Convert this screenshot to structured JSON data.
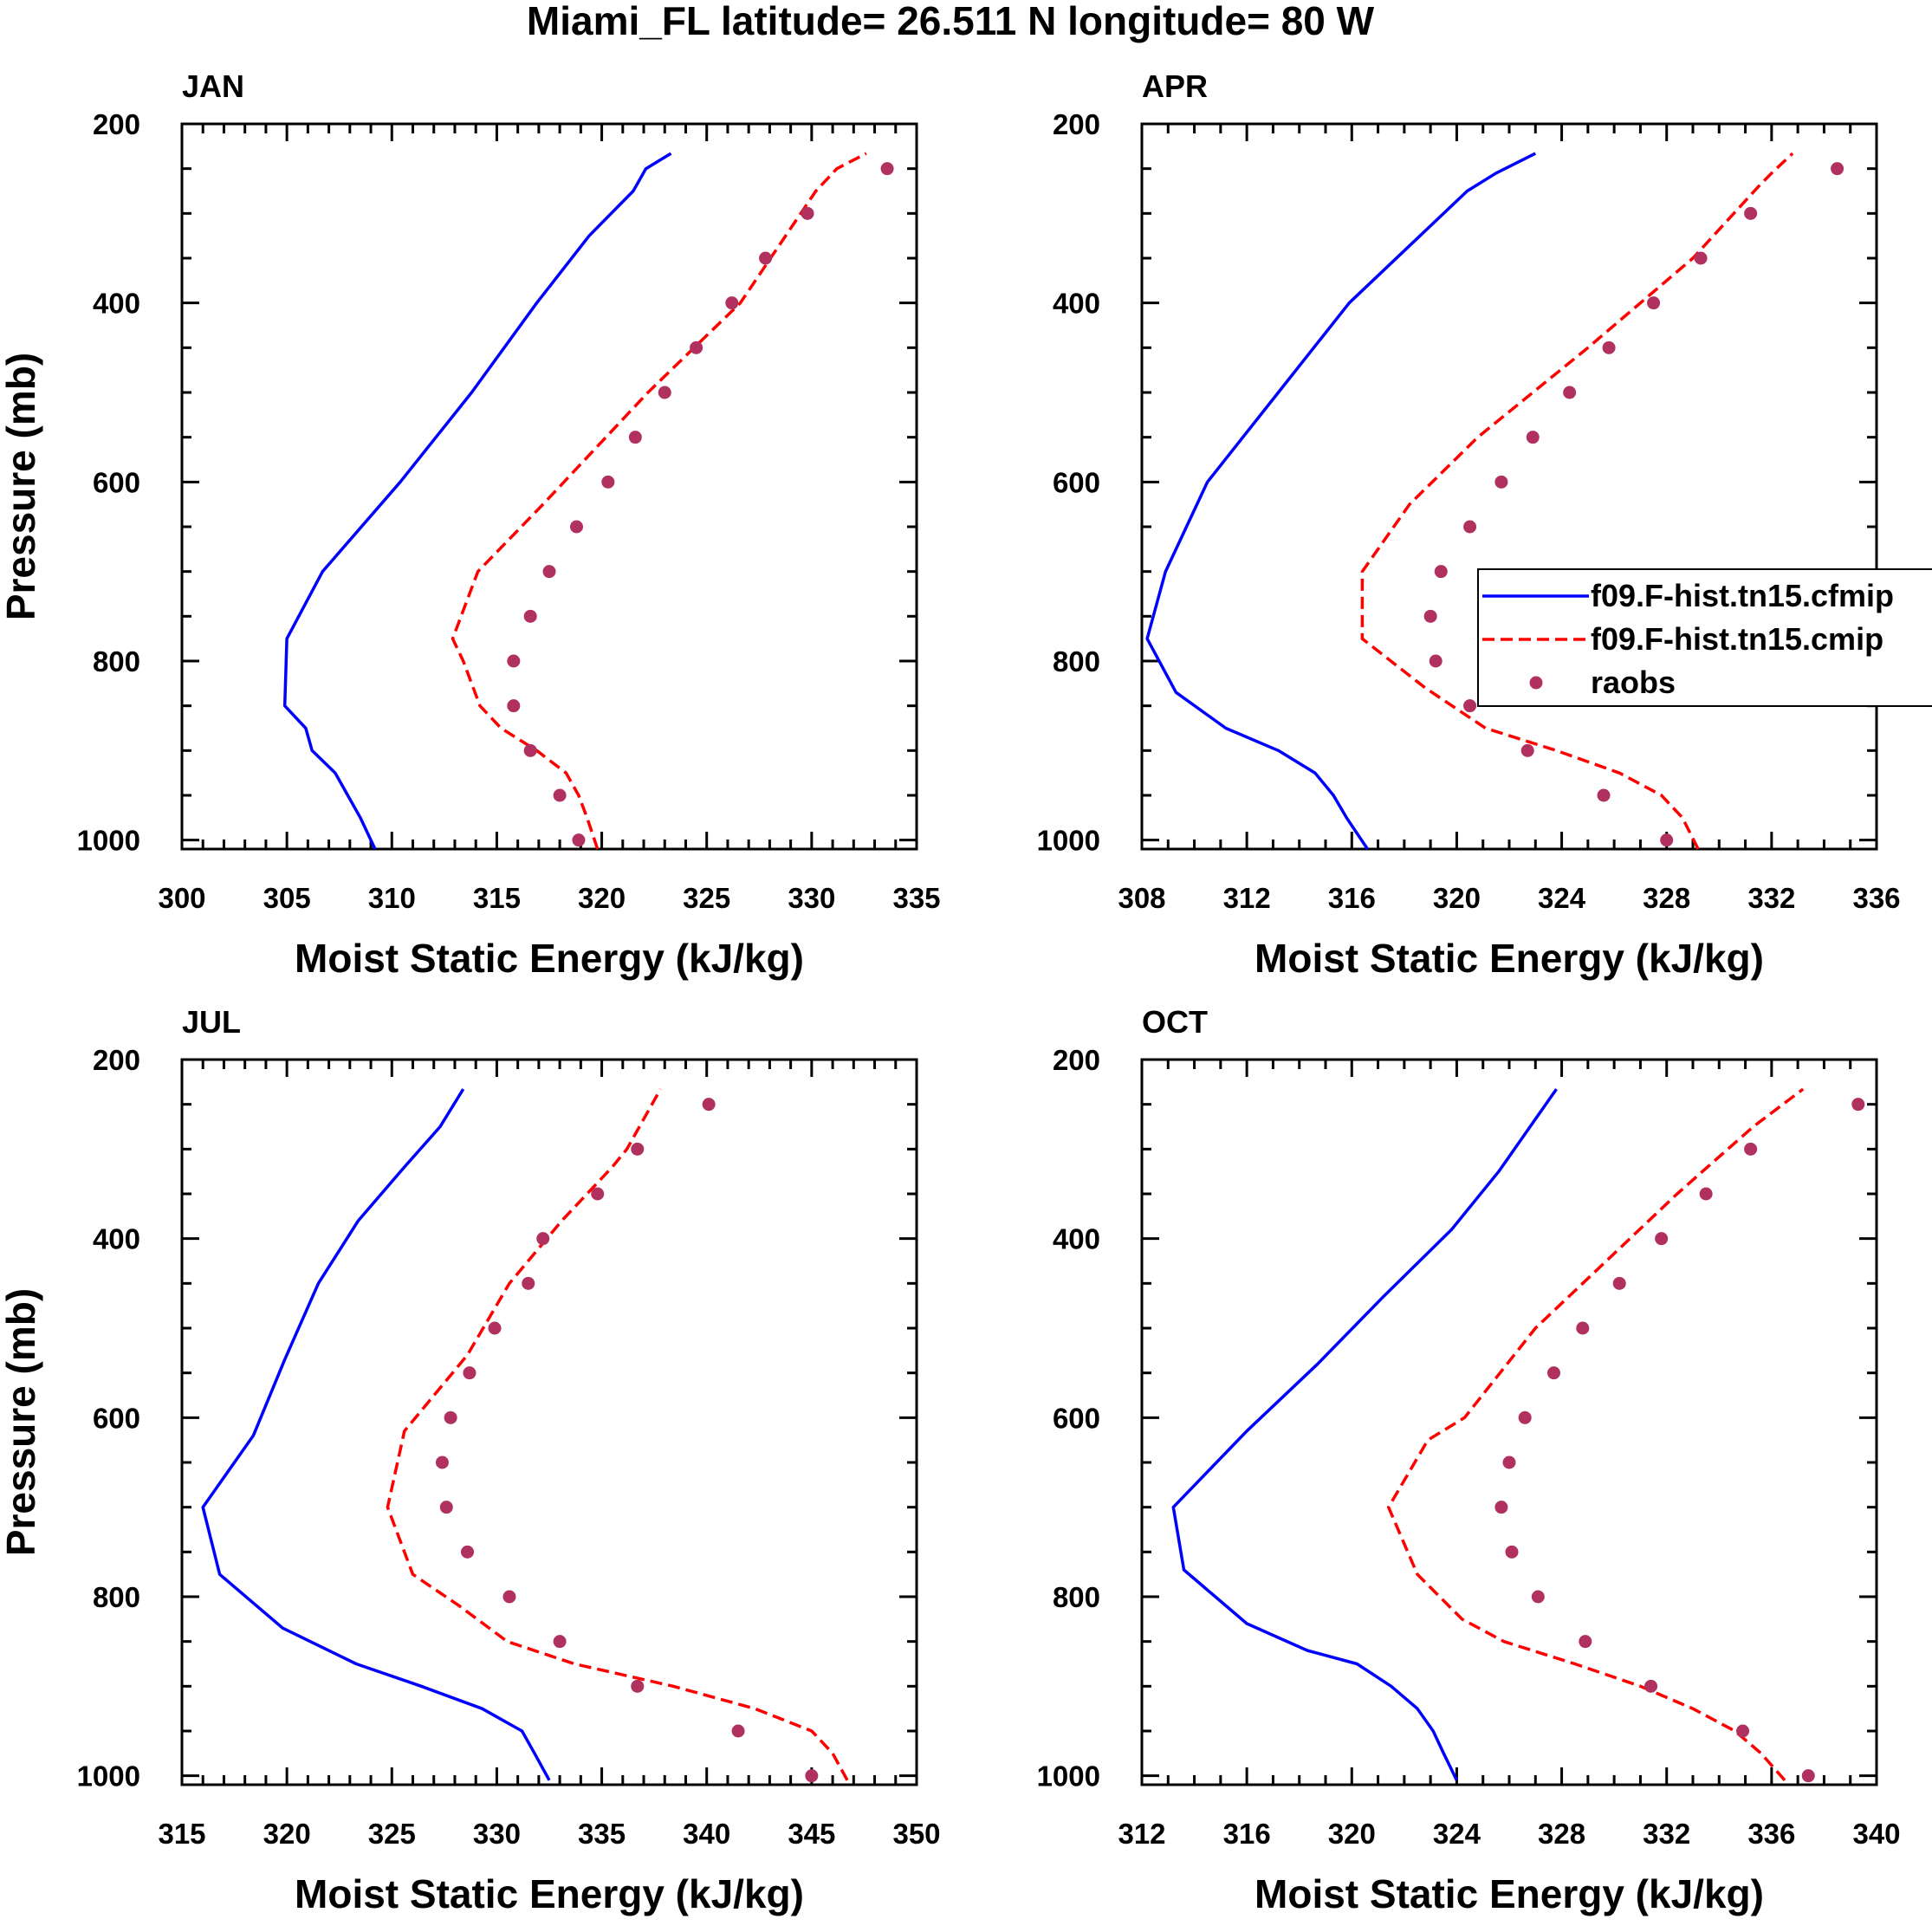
{
  "figure": {
    "title": "Miami_FL  latitude= 26.511 N longitude= 80 W"
  },
  "colors": {
    "cfmip": "#0000ff",
    "cmip": "#ff0000",
    "raobs": "#b03060",
    "axis": "#000000",
    "background": "#ffffff"
  },
  "legend": {
    "panel": 1,
    "entries": [
      {
        "label": "f09.F-hist.tn15.cfmip",
        "style": "solid",
        "series": "cfmip"
      },
      {
        "label": "f09.F-hist.tn15.cmip",
        "style": "dashed",
        "series": "cmip"
      },
      {
        "label": "raobs",
        "style": "marker",
        "series": "raobs"
      }
    ]
  },
  "chart_data": [
    {
      "type": "line",
      "panel_label": "JAN",
      "xlabel": "Moist Static Energy (kJ/kg)",
      "ylabel": "Pressure (mb)",
      "xlim": [
        300,
        335
      ],
      "xticks": [
        300,
        305,
        310,
        315,
        320,
        325,
        330,
        335
      ],
      "xminor": 1,
      "ylim": [
        200,
        1010
      ],
      "yticks": [
        200,
        400,
        600,
        800,
        1000
      ],
      "yminor": 50,
      "y_inverted": true,
      "series": [
        {
          "name": "f09.F-hist.tn15.cfmip",
          "key": "cfmip",
          "style": "solid",
          "x": [
            309.2,
            308.5,
            307.9,
            307.3,
            306.2,
            305.9,
            304.9,
            305.0,
            306.7,
            310.4,
            313.8,
            316.9,
            319.4,
            321.5,
            322.1,
            323.3
          ],
          "y": [
            1010,
            975,
            950,
            925,
            900,
            875,
            850,
            775,
            700,
            600,
            500,
            400,
            325,
            275,
            250,
            233
          ]
        },
        {
          "name": "f09.F-hist.tn15.cmip",
          "key": "cmip",
          "style": "dashed",
          "x": [
            319.8,
            319.3,
            318.9,
            318.3,
            316.9,
            315.2,
            314.2,
            313.4,
            312.9,
            314.1,
            317.2,
            322.2,
            326.6,
            330.2,
            331.2,
            332.6
          ],
          "y": [
            1010,
            975,
            950,
            925,
            900,
            875,
            850,
            800,
            775,
            700,
            625,
            500,
            400,
            275,
            250,
            233
          ]
        },
        {
          "name": "raobs",
          "key": "raobs",
          "style": "marker",
          "x": [
            318.9,
            318.0,
            316.6,
            315.8,
            315.8,
            316.6,
            317.5,
            318.8,
            320.3,
            321.6,
            323.0,
            324.5,
            326.2,
            327.8,
            329.8,
            333.6
          ],
          "y": [
            1000,
            950,
            900,
            850,
            800,
            750,
            700,
            650,
            600,
            550,
            500,
            450,
            400,
            350,
            300,
            250
          ]
        }
      ]
    },
    {
      "type": "line",
      "panel_label": "APR",
      "xlabel": "Moist Static Energy (kJ/kg)",
      "ylabel": "",
      "xlim": [
        308,
        336
      ],
      "xticks": [
        308,
        312,
        316,
        320,
        324,
        328,
        332,
        336
      ],
      "xminor": 1,
      "ylim": [
        200,
        1010
      ],
      "yticks": [
        200,
        400,
        600,
        800,
        1000
      ],
      "yminor": 50,
      "y_inverted": true,
      "series": [
        {
          "name": "f09.F-hist.tn15.cfmip",
          "key": "cfmip",
          "style": "solid",
          "x": [
            316.6,
            315.8,
            315.3,
            314.6,
            313.2,
            311.2,
            309.3,
            308.2,
            308.9,
            310.5,
            313.2,
            315.9,
            318.6,
            320.4,
            321.5,
            323.0
          ],
          "y": [
            1010,
            975,
            950,
            925,
            900,
            875,
            835,
            775,
            700,
            600,
            500,
            400,
            325,
            275,
            255,
            233
          ]
        },
        {
          "name": "f09.F-hist.tn15.cmip",
          "key": "cmip",
          "style": "dashed",
          "x": [
            329.2,
            328.6,
            327.8,
            326.2,
            323.8,
            321.1,
            318.8,
            316.4,
            316.4,
            318.2,
            320.8,
            325.0,
            329.0,
            331.5,
            332.0,
            332.8
          ],
          "y": [
            1010,
            975,
            950,
            925,
            900,
            875,
            830,
            775,
            700,
            625,
            550,
            450,
            350,
            270,
            255,
            233
          ]
        },
        {
          "name": "raobs",
          "key": "raobs",
          "style": "marker",
          "x": [
            328.0,
            325.6,
            322.7,
            320.5,
            319.2,
            319.0,
            319.4,
            320.5,
            321.7,
            322.9,
            324.3,
            325.8,
            327.5,
            329.3,
            331.2,
            334.5
          ],
          "y": [
            1000,
            950,
            900,
            850,
            800,
            750,
            700,
            650,
            600,
            550,
            500,
            450,
            400,
            350,
            300,
            250
          ]
        }
      ]
    },
    {
      "type": "line",
      "panel_label": "JUL",
      "xlabel": "Moist Static Energy (kJ/kg)",
      "ylabel": "Pressure (mb)",
      "xlim": [
        315,
        350
      ],
      "xticks": [
        315,
        320,
        325,
        330,
        335,
        340,
        345,
        350
      ],
      "xminor": 1,
      "ylim": [
        200,
        1010
      ],
      "yticks": [
        200,
        400,
        600,
        800,
        1000
      ],
      "yminor": 50,
      "y_inverted": true,
      "series": [
        {
          "name": "f09.F-hist.tn15.cfmip",
          "key": "cfmip",
          "style": "solid",
          "x": [
            332.5,
            331.8,
            331.2,
            329.3,
            326.4,
            323.3,
            319.8,
            316.8,
            316.0,
            318.4,
            319.9,
            321.5,
            323.4,
            325.6,
            327.3,
            328.4
          ],
          "y": [
            1005,
            975,
            950,
            925,
            900,
            875,
            835,
            775,
            700,
            620,
            535,
            450,
            380,
            320,
            275,
            233
          ]
        },
        {
          "name": "f09.F-hist.tn15.cmip",
          "key": "cmip",
          "style": "dashed",
          "x": [
            346.7,
            346.0,
            345.0,
            342.3,
            338.4,
            333.7,
            330.5,
            328.2,
            326.0,
            324.8,
            325.6,
            328.6,
            330.6,
            333.1,
            335.5,
            336.2,
            337.8
          ],
          "y": [
            1005,
            975,
            950,
            925,
            900,
            875,
            850,
            810,
            775,
            700,
            615,
            530,
            450,
            380,
            320,
            300,
            233
          ]
        },
        {
          "name": "raobs",
          "key": "raobs",
          "style": "marker",
          "x": [
            345.0,
            341.5,
            336.7,
            333.0,
            330.6,
            328.6,
            327.6,
            327.4,
            327.8,
            328.7,
            329.9,
            331.5,
            332.2,
            334.8,
            336.7,
            340.1
          ],
          "y": [
            1000,
            950,
            900,
            850,
            800,
            750,
            700,
            650,
            600,
            550,
            500,
            450,
            400,
            350,
            300,
            250
          ]
        }
      ]
    },
    {
      "type": "line",
      "panel_label": "OCT",
      "xlabel": "Moist Static Energy (kJ/kg)",
      "ylabel": "",
      "xlim": [
        312,
        340
      ],
      "xticks": [
        312,
        316,
        320,
        324,
        328,
        332,
        336,
        340
      ],
      "xminor": 1,
      "ylim": [
        200,
        1010
      ],
      "yticks": [
        200,
        400,
        600,
        800,
        1000
      ],
      "yminor": 50,
      "y_inverted": true,
      "series": [
        {
          "name": "f09.F-hist.tn15.cfmip",
          "key": "cfmip",
          "style": "solid",
          "x": [
            324.0,
            323.5,
            323.1,
            322.5,
            321.5,
            320.2,
            318.3,
            316.0,
            313.6,
            313.2,
            316.0,
            318.7,
            321.2,
            323.8,
            325.6,
            327.8
          ],
          "y": [
            1005,
            975,
            950,
            925,
            900,
            875,
            860,
            830,
            770,
            700,
            615,
            540,
            465,
            390,
            325,
            233
          ]
        },
        {
          "name": "f09.F-hist.tn15.cmip",
          "key": "cmip",
          "style": "dashed",
          "x": [
            336.5,
            335.6,
            334.6,
            333.0,
            331.0,
            328.5,
            325.8,
            324.2,
            322.5,
            321.4,
            322.9,
            324.3,
            327.0,
            329.7,
            332.4,
            335.3,
            337.2
          ],
          "y": [
            1005,
            975,
            950,
            925,
            900,
            875,
            850,
            825,
            775,
            700,
            625,
            600,
            500,
            425,
            350,
            275,
            233
          ]
        },
        {
          "name": "raobs",
          "key": "raobs",
          "style": "marker",
          "x": [
            337.4,
            334.9,
            331.4,
            328.9,
            327.1,
            326.1,
            325.7,
            326.0,
            326.6,
            327.7,
            328.8,
            330.2,
            331.8,
            333.5,
            335.2,
            339.3
          ],
          "y": [
            1000,
            950,
            900,
            850,
            800,
            750,
            700,
            650,
            600,
            550,
            500,
            450,
            400,
            350,
            300,
            250
          ]
        }
      ]
    }
  ]
}
